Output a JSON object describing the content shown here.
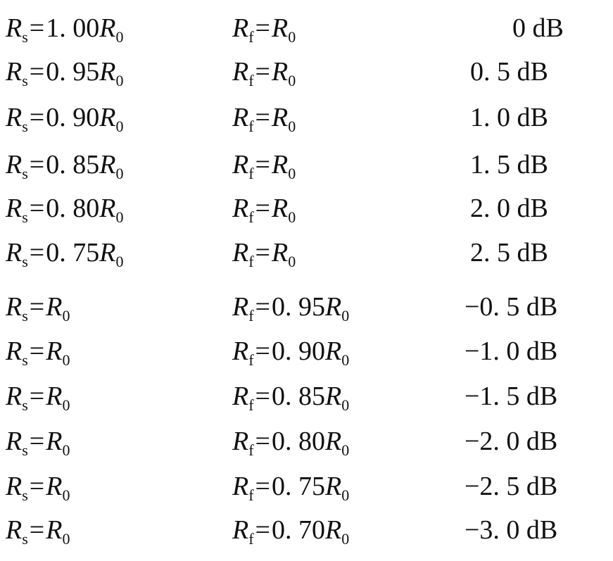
{
  "symbols": {
    "R": "R",
    "sub_s": "s",
    "sub_f": "f",
    "sub_0": "0",
    "eq": "="
  },
  "rows": [
    {
      "rs_coef": "1. 00",
      "rf_coef": "",
      "gain": "0 dB"
    },
    {
      "rs_coef": "0. 95",
      "rf_coef": "",
      "gain": "0. 5 dB"
    },
    {
      "rs_coef": "0. 90",
      "rf_coef": "",
      "gain": "1. 0 dB"
    },
    {
      "rs_coef": "0. 85",
      "rf_coef": "",
      "gain": "1. 5 dB"
    },
    {
      "rs_coef": "0. 80",
      "rf_coef": "",
      "gain": "2. 0 dB"
    },
    {
      "rs_coef": "0. 75",
      "rf_coef": "",
      "gain": "2. 5 dB"
    },
    {
      "rs_coef": "",
      "rf_coef": "0. 95",
      "gain": "−0. 5 dB"
    },
    {
      "rs_coef": "",
      "rf_coef": "0. 90",
      "gain": "−1. 0 dB"
    },
    {
      "rs_coef": "",
      "rf_coef": "0. 85",
      "gain": "−1. 5 dB"
    },
    {
      "rs_coef": "",
      "rf_coef": "0. 80",
      "gain": "−2. 0 dB"
    },
    {
      "rs_coef": "",
      "rf_coef": "0. 75",
      "gain": "−2. 5 dB"
    },
    {
      "rs_coef": "",
      "rf_coef": "0. 70",
      "gain": "−3. 0 dB"
    }
  ]
}
